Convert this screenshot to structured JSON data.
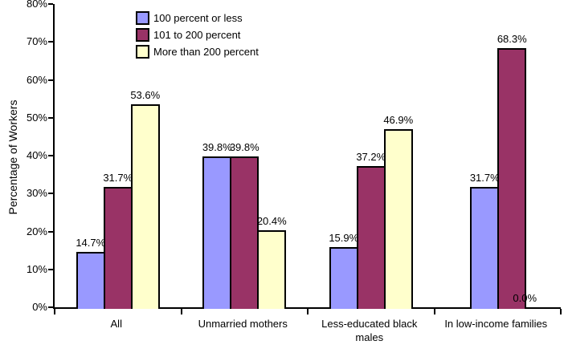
{
  "chart_data": {
    "type": "bar",
    "title": "",
    "xlabel": "",
    "ylabel": "Percentage of Workers",
    "ylim": [
      0,
      80
    ],
    "yticks": [
      "0%",
      "10%",
      "20%",
      "30%",
      "40%",
      "50%",
      "60%",
      "70%",
      "80%"
    ],
    "grid": false,
    "legend_position": "top-left-inside",
    "categories": [
      "All",
      "Unmarried mothers",
      "Less-educated black males",
      "In low-income families"
    ],
    "series": [
      {
        "name": "100 percent or less",
        "color": "#9999FF",
        "values": [
          14.7,
          39.8,
          15.9,
          31.7
        ]
      },
      {
        "name": "101 to 200 percent",
        "color": "#993366",
        "values": [
          31.7,
          39.8,
          37.2,
          68.3
        ]
      },
      {
        "name": "More than 200 percent",
        "color": "#FFFFCC",
        "values": [
          53.6,
          20.4,
          46.9,
          0.0
        ]
      }
    ],
    "data_label_format": "0.0%"
  },
  "colors": {
    "axis": "#000000",
    "background": "#FFFFFF",
    "series1": "#9999FF",
    "series2": "#993366",
    "series3": "#FFFFCC"
  }
}
